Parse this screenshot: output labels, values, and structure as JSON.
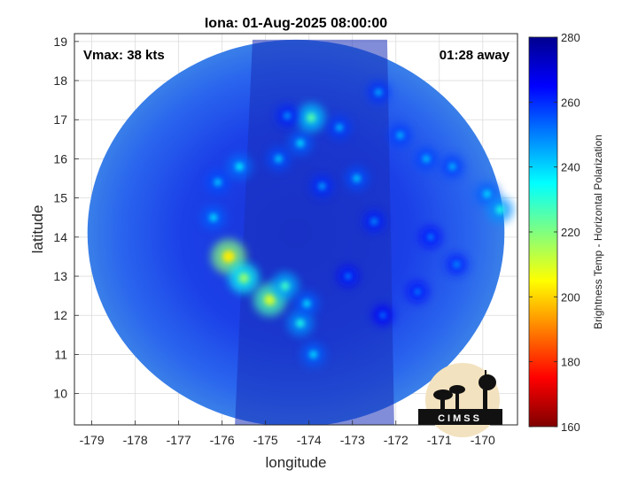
{
  "chart_data": {
    "type": "heatmap",
    "title": "Iona: 01-Aug-2025 08:00:00",
    "xlabel": "longitude",
    "ylabel": "latitude",
    "xlim": [
      -179.4,
      -169.2
    ],
    "ylim": [
      9.2,
      19.2
    ],
    "x_ticks": [
      -179,
      -178,
      -177,
      -176,
      -175,
      -174,
      -173,
      -172,
      -171,
      -170
    ],
    "y_ticks": [
      10,
      11,
      12,
      13,
      14,
      15,
      16,
      17,
      18,
      19
    ],
    "grid": true,
    "annotations": {
      "top_left": "Vmax: 38 kts",
      "top_right": "01:28 away"
    },
    "colorbar": {
      "label": "Brightness Temp - Horizontal Polarization",
      "range": [
        160,
        280
      ],
      "ticks": [
        160,
        180,
        200,
        220,
        240,
        260,
        280
      ],
      "colors": [
        "#7f0000",
        "#ff0000",
        "#ff8000",
        "#ffff00",
        "#80ff80",
        "#00ffff",
        "#0080ff",
        "#0000ff",
        "#00008f"
      ]
    },
    "swath": {
      "center_lon": -174.3,
      "center_lat": 14.1,
      "radius_deg": 4.8,
      "background_value": 258
    },
    "cold_features": [
      {
        "lon": -175.85,
        "lat": 13.5,
        "value": 203
      },
      {
        "lon": -175.5,
        "lat": 12.95,
        "value": 218
      },
      {
        "lon": -174.9,
        "lat": 12.4,
        "value": 210
      },
      {
        "lon": -174.55,
        "lat": 12.75,
        "value": 228
      },
      {
        "lon": -174.2,
        "lat": 11.8,
        "value": 232
      },
      {
        "lon": -174.05,
        "lat": 12.3,
        "value": 238
      },
      {
        "lon": -173.9,
        "lat": 11.0,
        "value": 238
      },
      {
        "lon": -176.2,
        "lat": 14.5,
        "value": 238
      },
      {
        "lon": -176.1,
        "lat": 15.4,
        "value": 240
      },
      {
        "lon": -175.6,
        "lat": 15.8,
        "value": 236
      },
      {
        "lon": -174.7,
        "lat": 16.0,
        "value": 240
      },
      {
        "lon": -174.2,
        "lat": 16.4,
        "value": 238
      },
      {
        "lon": -173.95,
        "lat": 17.05,
        "value": 225
      },
      {
        "lon": -174.5,
        "lat": 17.1,
        "value": 245
      },
      {
        "lon": -173.3,
        "lat": 16.8,
        "value": 242
      },
      {
        "lon": -172.9,
        "lat": 15.5,
        "value": 240
      },
      {
        "lon": -172.4,
        "lat": 17.7,
        "value": 243
      },
      {
        "lon": -171.9,
        "lat": 16.6,
        "value": 242
      },
      {
        "lon": -171.3,
        "lat": 16.0,
        "value": 241
      },
      {
        "lon": -170.7,
        "lat": 15.8,
        "value": 242
      },
      {
        "lon": -169.9,
        "lat": 15.1,
        "value": 238
      },
      {
        "lon": -169.6,
        "lat": 14.7,
        "value": 232
      },
      {
        "lon": -173.7,
        "lat": 15.3,
        "value": 244
      },
      {
        "lon": -172.5,
        "lat": 14.4,
        "value": 246
      },
      {
        "lon": -171.2,
        "lat": 14.0,
        "value": 247
      },
      {
        "lon": -170.6,
        "lat": 13.3,
        "value": 246
      },
      {
        "lon": -171.5,
        "lat": 12.6,
        "value": 248
      },
      {
        "lon": -172.3,
        "lat": 12.0,
        "value": 249
      },
      {
        "lon": -173.1,
        "lat": 13.0,
        "value": 248
      }
    ]
  },
  "logo": {
    "text": "CIMSS",
    "icon": "cimss-observatory-logo"
  }
}
